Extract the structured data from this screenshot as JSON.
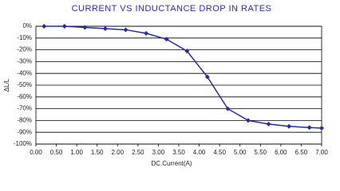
{
  "chart_data": {
    "type": "line",
    "title": "CURRENT VS INDUCTANCE DROP IN RATES",
    "x_label": "DC.Current(A)",
    "y_label": "ΔL/L",
    "x": [
      0.2,
      0.7,
      1.2,
      1.7,
      2.2,
      2.7,
      3.2,
      3.7,
      4.2,
      4.7,
      5.2,
      5.7,
      6.2,
      6.7,
      7.0
    ],
    "series": [
      {
        "name": "ΔL/L",
        "color": "#2a2a9a",
        "values": [
          0,
          0,
          -1,
          -2,
          -3,
          -6,
          -11,
          -21,
          -43,
          -70,
          -80,
          -83,
          -85,
          -86,
          -86.5
        ]
      }
    ],
    "xlim": [
      0,
      7
    ],
    "ylim": [
      -100,
      0
    ],
    "xticks": [
      {
        "value": 0,
        "label": "0.00"
      },
      {
        "value": 0.5,
        "label": "0.50"
      },
      {
        "value": 1,
        "label": "1.00"
      },
      {
        "value": 1.5,
        "label": "1.50"
      },
      {
        "value": 2,
        "label": "2.00"
      },
      {
        "value": 2.5,
        "label": "2.50"
      },
      {
        "value": 3,
        "label": "3.00"
      },
      {
        "value": 3.5,
        "label": "3.50"
      },
      {
        "value": 4,
        "label": "4.00"
      },
      {
        "value": 4.5,
        "label": "4.50"
      },
      {
        "value": 5,
        "label": "5.00"
      },
      {
        "value": 5.5,
        "label": "5.50"
      },
      {
        "value": 6,
        "label": "6.00"
      },
      {
        "value": 6.5,
        "label": "6.50"
      },
      {
        "value": 7,
        "label": "7.00"
      }
    ],
    "yticks": [
      {
        "value": 0,
        "label": "0%"
      },
      {
        "value": -10,
        "label": "-10%"
      },
      {
        "value": -20,
        "label": "-20%"
      },
      {
        "value": -30,
        "label": "-30%"
      },
      {
        "value": -40,
        "label": "-40%"
      },
      {
        "value": -50,
        "label": "-50%"
      },
      {
        "value": -60,
        "label": "-60%"
      },
      {
        "value": -70,
        "label": "-70%"
      },
      {
        "value": -80,
        "label": "-80%"
      },
      {
        "value": -90,
        "label": "-90%"
      },
      {
        "value": -100,
        "label": "-100%"
      }
    ],
    "grid": true
  }
}
